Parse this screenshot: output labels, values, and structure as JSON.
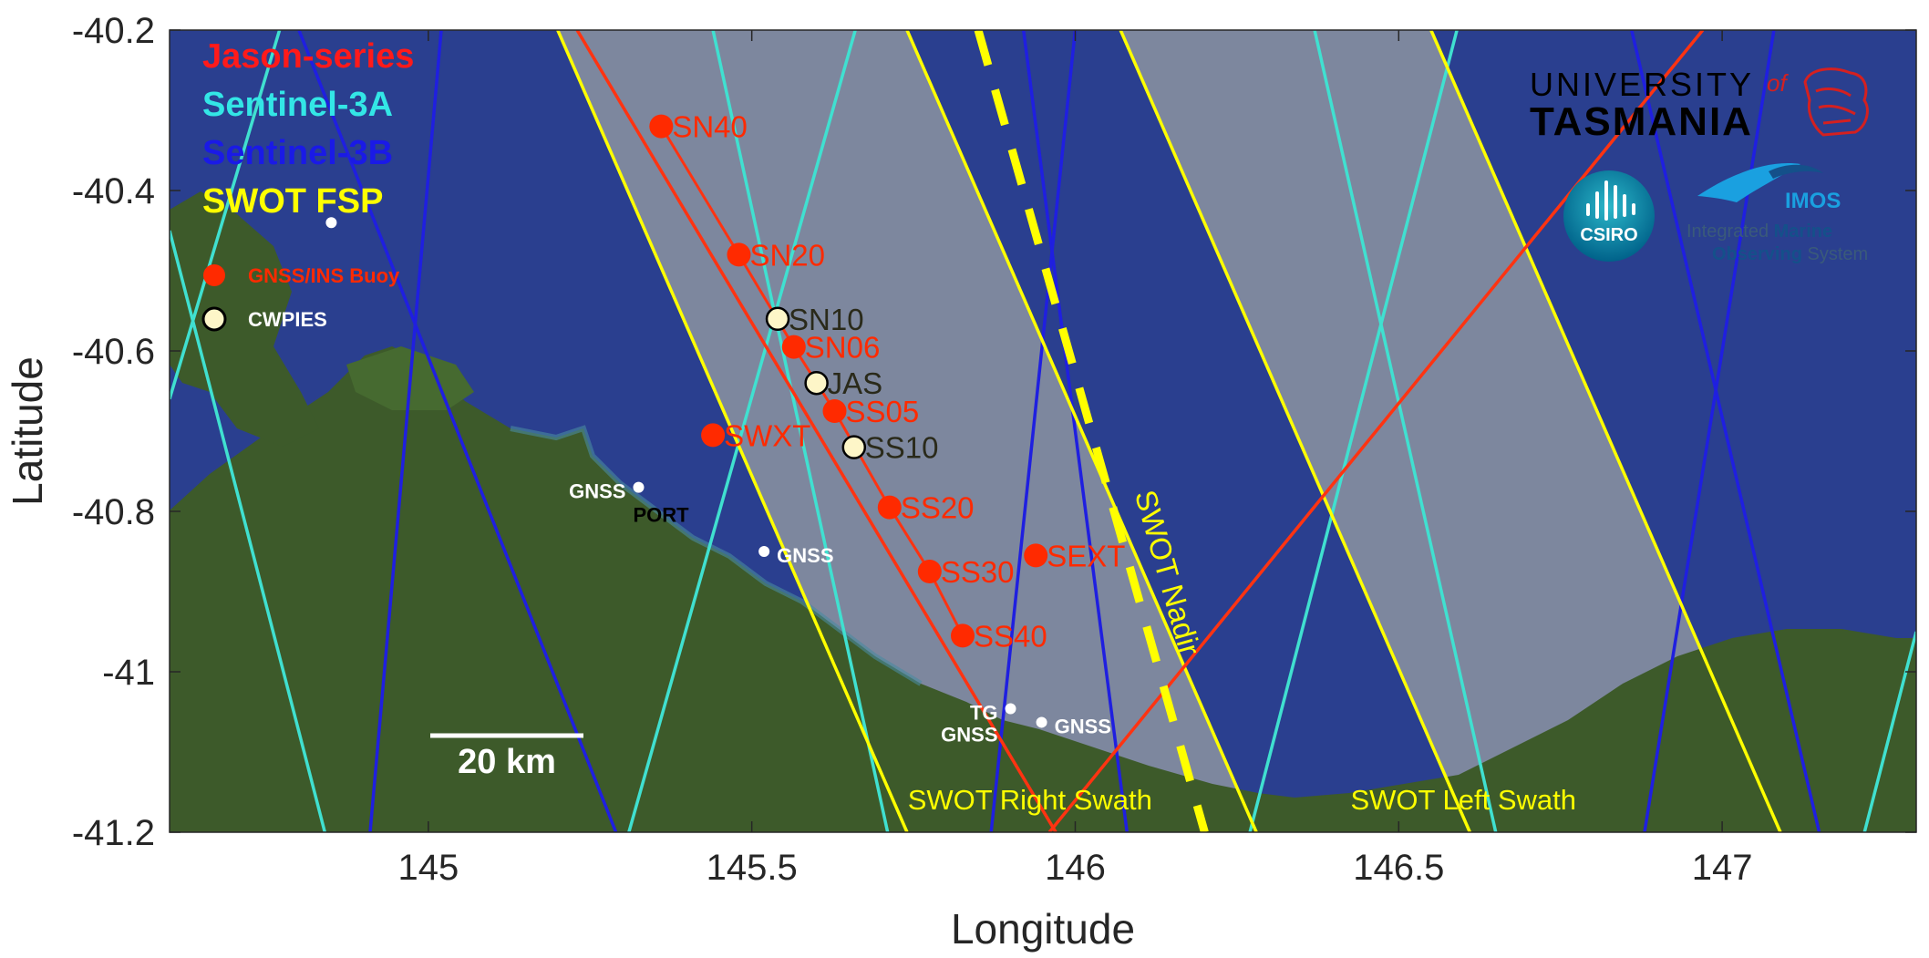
{
  "figure": {
    "axes": {
      "xlabel": "Longitude",
      "ylabel": "Latitude",
      "xlim": [
        144.6,
        147.3
      ],
      "ylim": [
        -41.2,
        -40.2
      ],
      "xticks": [
        {
          "value": 145,
          "label": "145"
        },
        {
          "value": 145.5,
          "label": "145.5"
        },
        {
          "value": 146,
          "label": "146"
        },
        {
          "value": 146.5,
          "label": "146.5"
        },
        {
          "value": 147,
          "label": "147"
        }
      ],
      "yticks": [
        {
          "value": -40.2,
          "label": "-40.2"
        },
        {
          "value": -40.4,
          "label": "-40.4"
        },
        {
          "value": -40.6,
          "label": "-40.6"
        },
        {
          "value": -40.8,
          "label": "-40.8"
        },
        {
          "value": -41.0,
          "label": "-41"
        },
        {
          "value": -41.2,
          "label": "-41.2"
        }
      ]
    },
    "legend": {
      "placement": "top-left",
      "entries": [
        {
          "label": "Jason-series",
          "color": "#ff1a1a"
        },
        {
          "label": "Sentinel-3A",
          "color": "#33e6e6"
        },
        {
          "label": "Sentinel-3B",
          "color": "#1a1ae6"
        },
        {
          "label": "SWOT FSP",
          "color": "#ffff00"
        }
      ],
      "markers": [
        {
          "label": "GNSS/INS Buoy",
          "color": "#ff2a00"
        },
        {
          "label": "CWPIES",
          "color": "#fdf6c8"
        }
      ]
    },
    "colors": {
      "ocean": "#2a3f8f",
      "land": "#3d5a2a",
      "swath_fill": "#9aa0a3",
      "jason": "#ff3311",
      "sentinel3a": "#40e0d0",
      "sentinel3b": "#1f1fe0",
      "swot": "#ffff00",
      "buoy": "#ff2a00",
      "cwpies": "#fdf6c8"
    },
    "tracks": {
      "jason": [
        {
          "lon": [
            145.23,
            145.97
          ],
          "lat": [
            -40.2,
            -41.2
          ]
        },
        {
          "lon": [
            145.96,
            146.97
          ],
          "lat": [
            -41.2,
            -40.2
          ]
        }
      ],
      "sentinel3a": [
        {
          "lon": [
            144.6,
            144.84
          ],
          "lat": [
            -40.45,
            -41.2
          ]
        },
        {
          "lon": [
            144.6,
            144.77
          ],
          "lat": [
            -40.66,
            -40.2
          ]
        },
        {
          "lon": [
            145.44,
            145.71
          ],
          "lat": [
            -40.2,
            -41.2
          ]
        },
        {
          "lon": [
            145.66,
            145.31
          ],
          "lat": [
            -40.2,
            -41.2
          ]
        },
        {
          "lon": [
            146.37,
            146.65
          ],
          "lat": [
            -40.2,
            -41.2
          ]
        },
        {
          "lon": [
            146.59,
            146.27
          ],
          "lat": [
            -40.2,
            -41.2
          ]
        },
        {
          "lon": [
            147.3,
            147.22
          ],
          "lat": [
            -40.95,
            -41.2
          ]
        }
      ],
      "sentinel3b": [
        {
          "lon": [
            144.8,
            145.29
          ],
          "lat": [
            -40.2,
            -41.2
          ]
        },
        {
          "lon": [
            145.02,
            144.91
          ],
          "lat": [
            -40.2,
            -41.2
          ]
        },
        {
          "lon": [
            145.92,
            146.08
          ],
          "lat": [
            -40.2,
            -41.2
          ]
        },
        {
          "lon": [
            146.0,
            145.87
          ],
          "lat": [
            -40.2,
            -41.2
          ]
        },
        {
          "lon": [
            146.86,
            147.15
          ],
          "lat": [
            -40.2,
            -41.2
          ]
        },
        {
          "lon": [
            147.08,
            146.88
          ],
          "lat": [
            -40.2,
            -41.2
          ]
        }
      ],
      "swot": [
        {
          "lon": [
            145.2,
            145.74
          ],
          "lat": [
            -40.2,
            -41.2
          ]
        },
        {
          "lon": [
            145.74,
            146.28
          ],
          "lat": [
            -40.2,
            -41.2
          ]
        },
        {
          "lon": [
            146.07,
            146.61
          ],
          "lat": [
            -40.2,
            -41.2
          ]
        },
        {
          "lon": [
            146.55,
            147.09
          ],
          "lat": [
            -40.2,
            -41.2
          ]
        }
      ],
      "swot_nadir": {
        "lon": [
          145.85,
          146.2
        ],
        "lat": [
          -40.2,
          -41.2
        ],
        "label": "SWOT Nadir"
      }
    },
    "swaths": [
      {
        "name": "SWOT Right Swath",
        "lon_top": [
          145.2,
          145.74
        ],
        "lon_bottom": [
          145.74,
          146.28
        ],
        "label_lon": 145.93,
        "label_lat": -41.16
      },
      {
        "name": "SWOT Left Swath",
        "lon_top": [
          146.07,
          146.55
        ],
        "lon_bottom": [
          146.61,
          147.09
        ],
        "label_lon": 146.6,
        "label_lat": -41.16
      }
    ],
    "buoys": [
      {
        "name": "SN40",
        "lon": 145.36,
        "lat": -40.32
      },
      {
        "name": "SN20",
        "lon": 145.48,
        "lat": -40.48
      },
      {
        "name": "SN06",
        "lon": 145.565,
        "lat": -40.595
      },
      {
        "name": "SS05",
        "lon": 145.628,
        "lat": -40.675
      },
      {
        "name": "SWXT",
        "lon": 145.44,
        "lat": -40.705
      },
      {
        "name": "SS20",
        "lon": 145.713,
        "lat": -40.795
      },
      {
        "name": "SEXT",
        "lon": 145.939,
        "lat": -40.855
      },
      {
        "name": "SS30",
        "lon": 145.775,
        "lat": -40.875
      },
      {
        "name": "SS40",
        "lon": 145.826,
        "lat": -40.955
      }
    ],
    "cwpies": [
      {
        "name": "SN10",
        "lon": 145.54,
        "lat": -40.56
      },
      {
        "name": "JAS",
        "lon": 145.6,
        "lat": -40.64
      },
      {
        "name": "SS10",
        "lon": 145.658,
        "lat": -40.72
      }
    ],
    "land_stations": [
      {
        "name": "GNSS",
        "lon": 144.85,
        "lat": -40.44,
        "label_dx": 0,
        "label_dy": 0,
        "show_label": false
      },
      {
        "name": "GNSS",
        "lon": 145.325,
        "lat": -40.77,
        "label_side": "left"
      },
      {
        "name": "PORT",
        "lon": 145.325,
        "lat": -40.77,
        "label_side": "below",
        "marker": false
      },
      {
        "name": "GNSS",
        "lon": 145.519,
        "lat": -40.85,
        "label_side": "right"
      },
      {
        "name": "TG",
        "lon": 145.9,
        "lat": -41.046,
        "label_side": "left"
      },
      {
        "name": "GNSS",
        "lon": 145.9,
        "lat": -41.046,
        "label_side": "below-left",
        "marker": false
      },
      {
        "name": "GNSS",
        "lon": 145.948,
        "lat": -41.063,
        "label_side": "right"
      }
    ],
    "scale_bar": {
      "label": "20 km"
    },
    "logos": {
      "utas_line1": "UNIVERSITY",
      "utas_of": "of",
      "utas_line2": "TASMANIA",
      "csiro": "CSIRO",
      "imos": "IMOS",
      "imos_tag1": "Integrated ",
      "imos_tag1b": "Marine",
      "imos_tag2": "Observing ",
      "imos_tag2b": "System"
    }
  }
}
